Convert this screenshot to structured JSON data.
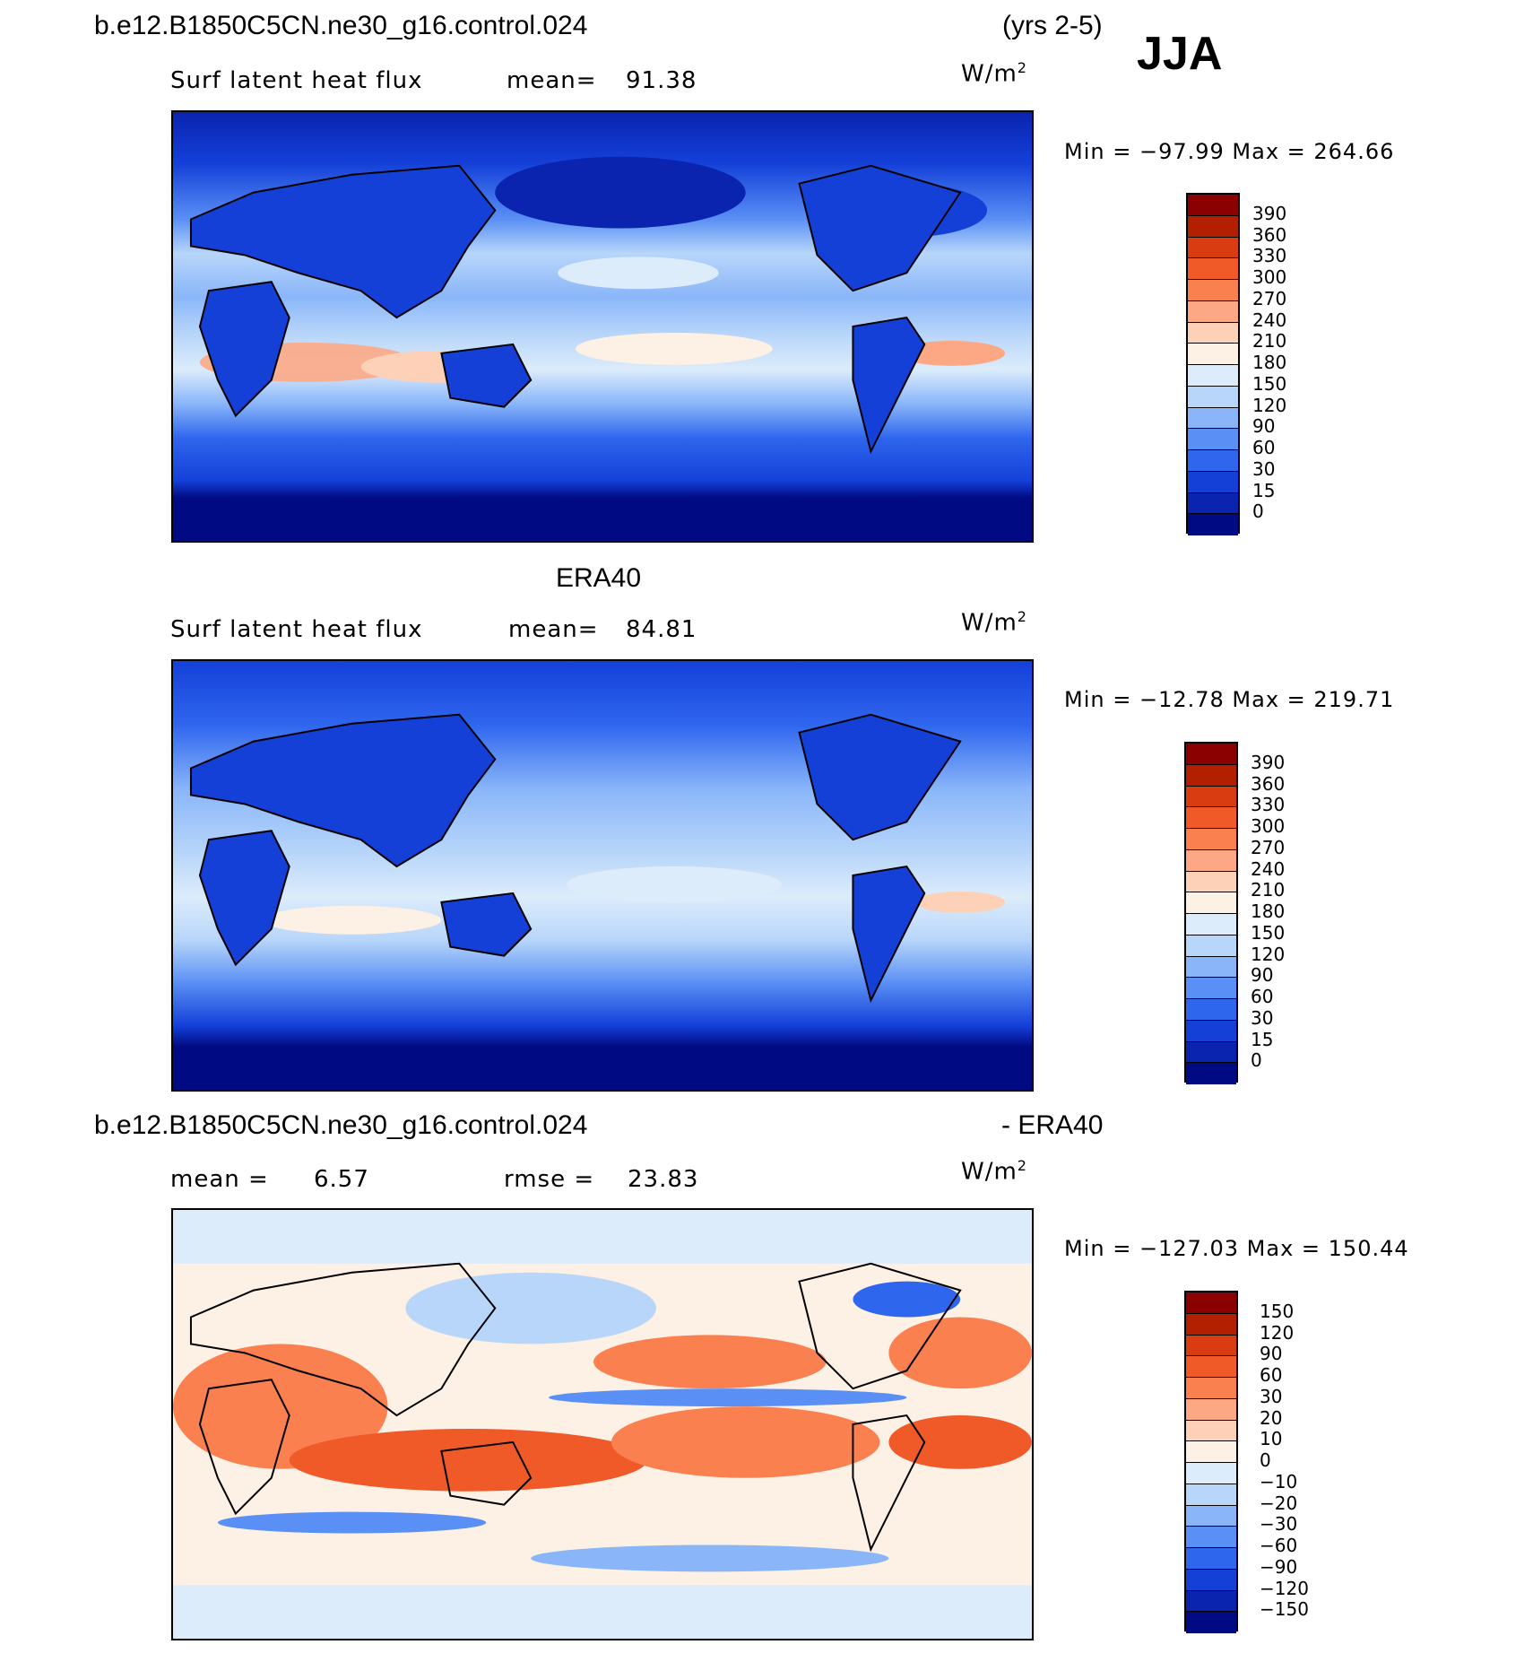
{
  "season": "JJA",
  "panels": [
    {
      "case_title": "b.e12.B1850C5CN.ne30_g16.control.024",
      "years": "(yrs 2-5)",
      "left_label": "Surf latent heat flux",
      "stat1_label": "mean=",
      "stat1_value": "91.38",
      "units_base": "W/m",
      "units_exp": "2",
      "minmax": "Min = −97.99 Max = 264.66",
      "colorbar": {
        "labels": [
          "390",
          "360",
          "330",
          "300",
          "270",
          "240",
          "210",
          "180",
          "150",
          "120",
          "90",
          "60",
          "30",
          "15",
          "0"
        ],
        "colors": [
          "#8b0000",
          "#b22000",
          "#d83c10",
          "#f05a28",
          "#fb8050",
          "#fda885",
          "#fdd0b8",
          "#fdf0e4",
          "#dcecfb",
          "#b8d6fa",
          "#8ab6f9",
          "#5a90f5",
          "#2f66ee",
          "#1440d8",
          "#0a24b0",
          "#000a82"
        ]
      },
      "field_colors": {
        "ocean_polar": "#000a82",
        "ocean_mid": "#2f66ee",
        "ocean_sub": "#8ab6f9",
        "trade": "#dcecfb",
        "hot": "#fda885",
        "land": "#1440d8",
        "land2": "#0a24b0"
      }
    },
    {
      "case_title": "ERA40",
      "left_label": "Surf latent heat flux",
      "stat1_label": "mean=",
      "stat1_value": "84.81",
      "units_base": "W/m",
      "units_exp": "2",
      "minmax": "Min = −12.78 Max = 219.71",
      "colorbar": {
        "labels": [
          "390",
          "360",
          "330",
          "300",
          "270",
          "240",
          "210",
          "180",
          "150",
          "120",
          "90",
          "60",
          "30",
          "15",
          "0"
        ],
        "colors": [
          "#8b0000",
          "#b22000",
          "#d83c10",
          "#f05a28",
          "#fb8050",
          "#fda885",
          "#fdd0b8",
          "#fdf0e4",
          "#dcecfb",
          "#b8d6fa",
          "#8ab6f9",
          "#5a90f5",
          "#2f66ee",
          "#1440d8",
          "#0a24b0",
          "#000a82"
        ]
      }
    },
    {
      "case_title": "b.e12.B1850C5CN.ne30_g16.control.024",
      "right_title": "- ERA40",
      "stat1_label": "mean =",
      "stat1_value": "6.57",
      "stat2_label": "rmse =",
      "stat2_value": "23.83",
      "units_base": "W/m",
      "units_exp": "2",
      "minmax": "Min = −127.03 Max = 150.44",
      "colorbar": {
        "labels": [
          "150",
          "120",
          "90",
          "60",
          "30",
          "20",
          "10",
          "0",
          "−10",
          "−20",
          "−30",
          "−60",
          "−90",
          "−120",
          "−150"
        ],
        "colors": [
          "#8b0000",
          "#b22000",
          "#d83c10",
          "#f05a28",
          "#fb8050",
          "#fda885",
          "#fdd0b8",
          "#fdf0e4",
          "#dcecfb",
          "#b8d6fa",
          "#8ab6f9",
          "#5a90f5",
          "#2f66ee",
          "#1440d8",
          "#0a24b0",
          "#000a82"
        ]
      }
    }
  ]
}
